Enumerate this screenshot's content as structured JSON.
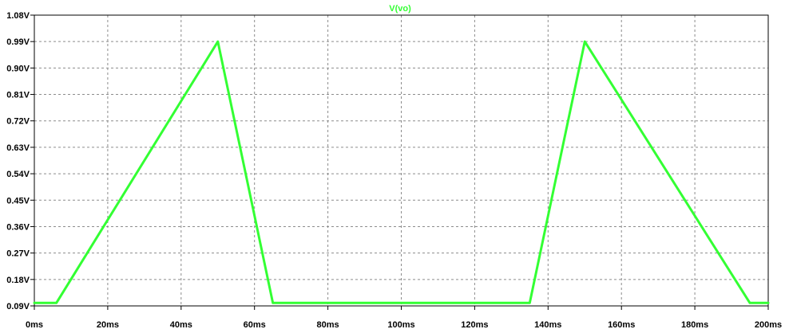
{
  "chart_data": {
    "type": "line",
    "title": "V(vo)",
    "xlabel": "",
    "ylabel": "",
    "xlim": [
      0,
      200
    ],
    "ylim": [
      0.09,
      1.08
    ],
    "x_ticks": [
      "0ms",
      "20ms",
      "40ms",
      "60ms",
      "80ms",
      "100ms",
      "120ms",
      "140ms",
      "160ms",
      "180ms",
      "200ms"
    ],
    "y_ticks": [
      "0.09V",
      "0.18V",
      "0.27V",
      "0.36V",
      "0.45V",
      "0.54V",
      "0.63V",
      "0.72V",
      "0.81V",
      "0.90V",
      "0.99V",
      "1.08V"
    ],
    "grid": true,
    "series": [
      {
        "name": "V(vo)",
        "color": "#33ff33",
        "x": [
          0,
          6,
          50,
          65,
          135,
          150,
          195,
          200
        ],
        "y": [
          0.1,
          0.1,
          0.99,
          0.1,
          0.1,
          0.99,
          0.1,
          0.1
        ]
      }
    ]
  }
}
